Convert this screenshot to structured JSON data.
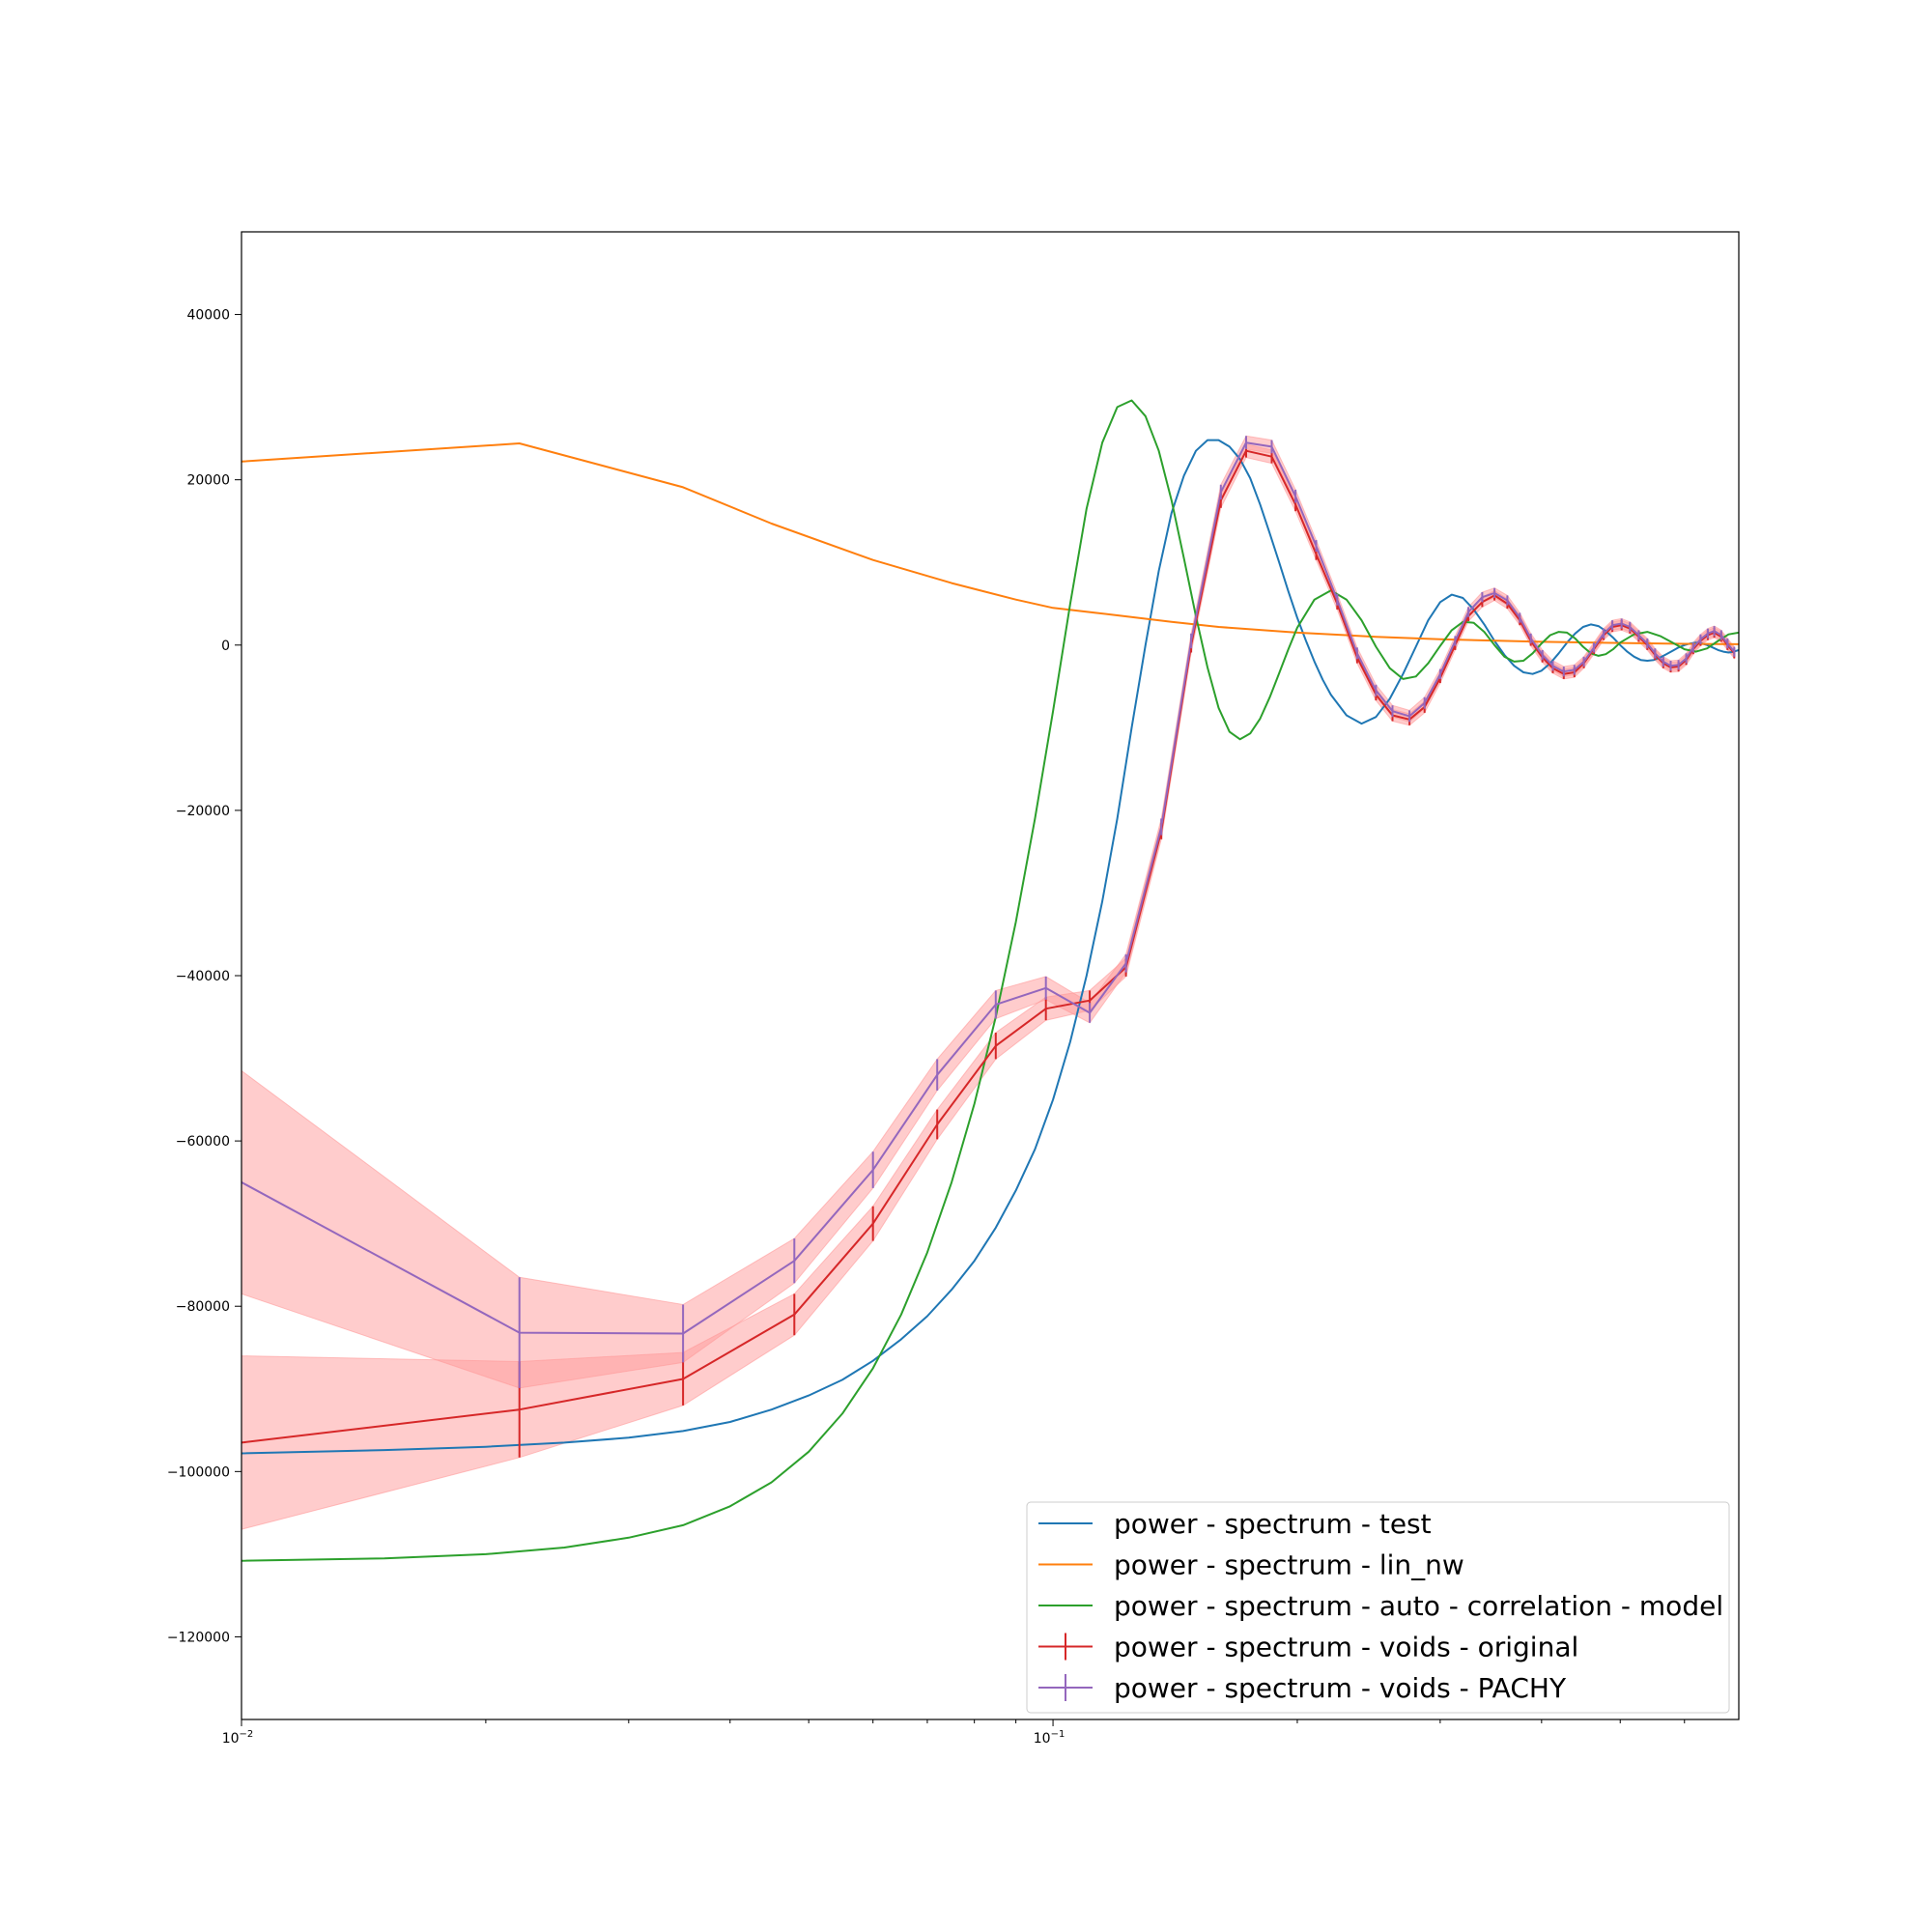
{
  "chart_data": {
    "type": "line",
    "title": "",
    "xlabel": "",
    "ylabel": "",
    "xscale": "log",
    "xlim": [
      0.01,
      0.7
    ],
    "ylim": [
      -130000,
      50000
    ],
    "grid": false,
    "legend_position": "lower-right",
    "xticks": [
      {
        "value": 0.01,
        "base": "10",
        "exp": "−2"
      },
      {
        "value": 0.1,
        "base": "10",
        "exp": "−1"
      }
    ],
    "yticks": [
      {
        "value": 40000,
        "label": "40000"
      },
      {
        "value": 20000,
        "label": "20000"
      },
      {
        "value": 0,
        "label": "0"
      },
      {
        "value": -20000,
        "label": "−20000"
      },
      {
        "value": -40000,
        "label": "−40000"
      },
      {
        "value": -60000,
        "label": "−60000"
      },
      {
        "value": -80000,
        "label": "−80000"
      },
      {
        "value": -100000,
        "label": "−100000"
      },
      {
        "value": -120000,
        "label": "−120000"
      }
    ],
    "series": [
      {
        "name": "power - spectrum - test",
        "color": "#1f77b4",
        "kind": "line",
        "x": [
          0.01,
          0.015,
          0.02,
          0.025,
          0.03,
          0.035,
          0.04,
          0.045,
          0.05,
          0.055,
          0.06,
          0.065,
          0.07,
          0.075,
          0.08,
          0.085,
          0.09,
          0.095,
          0.1,
          0.105,
          0.11,
          0.115,
          0.12,
          0.125,
          0.13,
          0.135,
          0.14,
          0.145,
          0.15,
          0.155,
          0.16,
          0.165,
          0.17,
          0.175,
          0.18,
          0.185,
          0.19,
          0.195,
          0.2,
          0.205,
          0.21,
          0.215,
          0.22,
          0.23,
          0.24,
          0.25,
          0.26,
          0.27,
          0.28,
          0.29,
          0.3,
          0.31,
          0.32,
          0.33,
          0.34,
          0.35,
          0.36,
          0.37,
          0.38,
          0.39,
          0.4,
          0.41,
          0.42,
          0.43,
          0.44,
          0.45,
          0.46,
          0.47,
          0.48,
          0.49,
          0.5,
          0.51,
          0.52,
          0.53,
          0.54,
          0.55,
          0.56,
          0.57,
          0.58,
          0.59,
          0.6,
          0.61,
          0.62,
          0.63,
          0.64,
          0.65,
          0.66,
          0.67,
          0.68,
          0.69,
          0.7
        ],
        "y": [
          -97800,
          -97400,
          -97000,
          -96500,
          -95900,
          -95100,
          -94000,
          -92500,
          -90800,
          -88900,
          -86600,
          -84000,
          -81200,
          -78000,
          -74500,
          -70500,
          -66000,
          -61000,
          -55000,
          -48000,
          -40000,
          -31000,
          -21000,
          -10000,
          0,
          9000,
          16000,
          20500,
          23500,
          24800,
          24800,
          24000,
          22500,
          20200,
          17000,
          13500,
          10000,
          6500,
          3300,
          500,
          -2000,
          -4200,
          -6000,
          -8500,
          -9500,
          -8700,
          -6500,
          -3500,
          -200,
          3000,
          5200,
          6100,
          5700,
          4300,
          2500,
          500,
          -1200,
          -2500,
          -3300,
          -3500,
          -3100,
          -2200,
          -1000,
          300,
          1400,
          2200,
          2500,
          2300,
          1700,
          900,
          0,
          -800,
          -1400,
          -1800,
          -1900,
          -1800,
          -1500,
          -1100,
          -700,
          -300,
          0,
          200,
          300,
          200,
          0,
          -300,
          -600,
          -800,
          -900,
          -800,
          -600
        ]
      },
      {
        "name": "power - spectrum - lin_nw",
        "color": "#ff7f0e",
        "kind": "line",
        "x": [
          0.01,
          0.022,
          0.035,
          0.045,
          0.06,
          0.075,
          0.09,
          0.1,
          0.12,
          0.14,
          0.16,
          0.2,
          0.25,
          0.3,
          0.4,
          0.5,
          0.6,
          0.7
        ],
        "y": [
          22200,
          24400,
          19100,
          14700,
          10300,
          7500,
          5500,
          4500,
          3600,
          2800,
          2200,
          1500,
          1000,
          700,
          400,
          250,
          150,
          100
        ]
      },
      {
        "name": "power - spectrum - auto - correlation - model",
        "color": "#2ca02c",
        "kind": "line",
        "x": [
          0.01,
          0.015,
          0.02,
          0.025,
          0.03,
          0.035,
          0.04,
          0.045,
          0.05,
          0.055,
          0.06,
          0.065,
          0.07,
          0.075,
          0.08,
          0.085,
          0.09,
          0.095,
          0.1,
          0.105,
          0.11,
          0.115,
          0.12,
          0.125,
          0.13,
          0.135,
          0.14,
          0.145,
          0.15,
          0.155,
          0.16,
          0.165,
          0.17,
          0.175,
          0.18,
          0.185,
          0.19,
          0.195,
          0.2,
          0.21,
          0.22,
          0.23,
          0.24,
          0.25,
          0.26,
          0.27,
          0.28,
          0.29,
          0.3,
          0.31,
          0.32,
          0.33,
          0.34,
          0.35,
          0.36,
          0.37,
          0.38,
          0.39,
          0.4,
          0.41,
          0.42,
          0.43,
          0.44,
          0.45,
          0.46,
          0.47,
          0.48,
          0.49,
          0.5,
          0.52,
          0.54,
          0.56,
          0.58,
          0.6,
          0.62,
          0.64,
          0.66,
          0.68,
          0.7
        ],
        "y": [
          -110800,
          -110500,
          -110000,
          -109200,
          -108000,
          -106500,
          -104200,
          -101300,
          -97600,
          -93000,
          -87500,
          -81000,
          -73500,
          -65000,
          -55500,
          -45000,
          -33500,
          -21000,
          -8000,
          5000,
          16500,
          24500,
          28800,
          29600,
          27700,
          23500,
          17500,
          10500,
          3500,
          -2700,
          -7600,
          -10500,
          -11400,
          -10700,
          -8900,
          -6300,
          -3400,
          -500,
          2100,
          5500,
          6600,
          5500,
          3000,
          -200,
          -2800,
          -4100,
          -3800,
          -2200,
          -100,
          1800,
          2800,
          2700,
          1600,
          0,
          -1400,
          -2000,
          -1900,
          -1000,
          200,
          1200,
          1600,
          1500,
          800,
          -200,
          -1000,
          -1300,
          -1100,
          -500,
          300,
          1300,
          1600,
          1100,
          300,
          -500,
          -800,
          -400,
          500,
          1300,
          1500
        ]
      },
      {
        "name": "power - spectrum - voids - original",
        "color": "#d62728",
        "kind": "errorbar",
        "band_color": "#ff9999",
        "x": [
          0.01,
          0.022,
          0.035,
          0.048,
          0.06,
          0.072,
          0.085,
          0.098,
          0.111,
          0.123,
          0.136,
          0.148,
          0.161,
          0.173,
          0.186,
          0.199,
          0.211,
          0.224,
          0.237,
          0.25,
          0.262,
          0.275,
          0.287,
          0.3,
          0.313,
          0.325,
          0.338,
          0.35,
          0.363,
          0.376,
          0.388,
          0.401,
          0.413,
          0.426,
          0.439,
          0.451,
          0.464,
          0.477,
          0.489,
          0.502,
          0.514,
          0.527,
          0.54,
          0.552,
          0.565,
          0.577,
          0.59,
          0.603,
          0.615,
          0.628,
          0.641,
          0.653,
          0.666,
          0.678,
          0.691
        ],
        "y": [
          -96500,
          -92500,
          -88800,
          -81000,
          -70000,
          -58000,
          -48500,
          -44000,
          -43000,
          -39000,
          -22500,
          0,
          17500,
          23500,
          22800,
          17000,
          11000,
          5000,
          -1500,
          -6000,
          -8500,
          -9000,
          -7500,
          -4000,
          0,
          3500,
          5200,
          6000,
          5000,
          3000,
          500,
          -1500,
          -2800,
          -3500,
          -3300,
          -2200,
          -500,
          1200,
          2200,
          2400,
          2000,
          1000,
          0,
          -1200,
          -2200,
          -2700,
          -2600,
          -1800,
          -500,
          500,
          1200,
          1500,
          1000,
          0,
          -1000
        ],
        "err": [
          10500,
          5800,
          3200,
          2500,
          2100,
          1800,
          1600,
          1400,
          1200,
          1100,
          1000,
          900,
          900,
          800,
          800,
          800,
          700,
          700,
          700,
          700,
          700,
          700,
          700,
          600,
          600,
          600,
          600,
          600,
          600,
          600,
          600,
          600,
          600,
          600,
          600,
          600,
          600,
          600,
          600,
          600,
          600,
          600,
          600,
          600,
          600,
          600,
          600,
          600,
          600,
          600,
          600,
          600,
          600,
          600,
          600
        ]
      },
      {
        "name": "power - spectrum - voids - PACHY",
        "color": "#9467bd",
        "kind": "errorbar",
        "band_color": "#ff9999",
        "x": [
          0.01,
          0.022,
          0.035,
          0.048,
          0.06,
          0.072,
          0.085,
          0.098,
          0.111,
          0.123,
          0.136,
          0.148,
          0.161,
          0.173,
          0.186,
          0.199,
          0.211,
          0.224,
          0.237,
          0.25,
          0.262,
          0.275,
          0.287,
          0.3,
          0.313,
          0.325,
          0.338,
          0.35,
          0.363,
          0.376,
          0.388,
          0.401,
          0.413,
          0.426,
          0.439,
          0.451,
          0.464,
          0.477,
          0.489,
          0.502,
          0.514,
          0.527,
          0.54,
          0.552,
          0.565,
          0.577,
          0.59,
          0.603,
          0.615,
          0.628,
          0.641,
          0.653,
          0.666,
          0.678,
          0.691
        ],
        "y": [
          -65000,
          -83200,
          -83300,
          -74500,
          -63500,
          -52000,
          -43500,
          -41500,
          -44500,
          -38500,
          -22000,
          500,
          18500,
          24500,
          24000,
          18000,
          12000,
          5500,
          -1000,
          -5500,
          -8000,
          -8600,
          -7000,
          -3500,
          500,
          4000,
          5800,
          6300,
          5400,
          3300,
          800,
          -1200,
          -2500,
          -3200,
          -3000,
          -2000,
          -300,
          1400,
          2400,
          2600,
          2200,
          1200,
          200,
          -1000,
          -2000,
          -2500,
          -2400,
          -1600,
          -300,
          700,
          1400,
          1700,
          1200,
          200,
          -800
        ],
        "err": [
          13500,
          6700,
          3500,
          2700,
          2200,
          1900,
          1700,
          1400,
          1200,
          1100,
          1000,
          900,
          900,
          800,
          800,
          800,
          700,
          700,
          700,
          700,
          700,
          700,
          700,
          600,
          600,
          600,
          600,
          600,
          600,
          600,
          600,
          600,
          600,
          600,
          600,
          600,
          600,
          600,
          600,
          600,
          600,
          600,
          600,
          600,
          600,
          600,
          600,
          600,
          600,
          600,
          600,
          600,
          600,
          600,
          600
        ]
      }
    ]
  }
}
